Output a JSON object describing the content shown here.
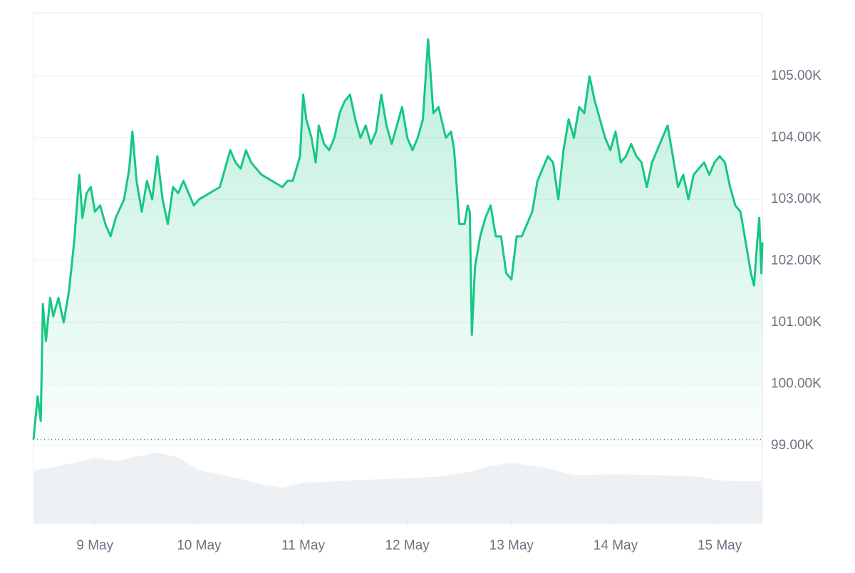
{
  "chart_data": {
    "type": "line",
    "x": [
      8.41,
      8.45,
      8.48,
      8.5,
      8.53,
      8.57,
      8.6,
      8.65,
      8.7,
      8.75,
      8.8,
      8.85,
      8.88,
      8.92,
      8.96,
      9.0,
      9.05,
      9.1,
      9.15,
      9.2,
      9.28,
      9.33,
      9.36,
      9.4,
      9.45,
      9.5,
      9.55,
      9.6,
      9.65,
      9.7,
      9.75,
      9.8,
      9.85,
      9.9,
      9.95,
      10.0,
      10.1,
      10.2,
      10.25,
      10.3,
      10.35,
      10.4,
      10.45,
      10.5,
      10.6,
      10.7,
      10.8,
      10.85,
      10.9,
      10.97,
      11.0,
      11.03,
      11.08,
      11.12,
      11.15,
      11.2,
      11.25,
      11.3,
      11.35,
      11.4,
      11.45,
      11.5,
      11.55,
      11.6,
      11.65,
      11.7,
      11.75,
      11.8,
      11.85,
      11.9,
      11.95,
      12.0,
      12.05,
      12.1,
      12.15,
      12.2,
      12.25,
      12.3,
      12.37,
      12.42,
      12.45,
      12.5,
      12.55,
      12.58,
      12.6,
      12.62,
      12.65,
      12.7,
      12.75,
      12.8,
      12.85,
      12.9,
      12.95,
      13.0,
      13.05,
      13.1,
      13.15,
      13.2,
      13.25,
      13.3,
      13.35,
      13.4,
      13.45,
      13.5,
      13.55,
      13.6,
      13.65,
      13.7,
      13.75,
      13.8,
      13.85,
      13.9,
      13.95,
      14.0,
      14.05,
      14.1,
      14.15,
      14.2,
      14.25,
      14.3,
      14.35,
      14.4,
      14.45,
      14.5,
      14.55,
      14.6,
      14.65,
      14.7,
      14.75,
      14.8,
      14.85,
      14.9,
      14.95,
      15.0,
      15.05,
      15.1,
      15.15,
      15.2,
      15.25,
      15.3,
      15.33,
      15.36,
      15.38,
      15.4,
      15.41
    ],
    "series": [
      {
        "color": "#16c784",
        "values": [
          99100,
          99800,
          99400,
          101300,
          100700,
          101400,
          101100,
          101400,
          101000,
          101500,
          102300,
          103400,
          102700,
          103100,
          103200,
          102800,
          102900,
          102600,
          102400,
          102700,
          103000,
          103500,
          104100,
          103300,
          102800,
          103300,
          103000,
          103700,
          103000,
          102600,
          103200,
          103100,
          103300,
          103100,
          102900,
          103000,
          103100,
          103200,
          103500,
          103800,
          103600,
          103500,
          103800,
          103600,
          103400,
          103300,
          103200,
          103300,
          103300,
          103700,
          104700,
          104300,
          104000,
          103600,
          104200,
          103900,
          103800,
          104000,
          104400,
          104600,
          104700,
          104300,
          104000,
          104200,
          103900,
          104100,
          104700,
          104200,
          103900,
          104200,
          104500,
          104000,
          103800,
          104000,
          104300,
          105600,
          104400,
          104500,
          104000,
          104100,
          103800,
          102600,
          102600,
          102900,
          102800,
          100800,
          101900,
          102400,
          102700,
          102900,
          102400,
          102400,
          101800,
          101700,
          102400,
          102400,
          102600,
          102800,
          103300,
          103500,
          103700,
          103600,
          103000,
          103800,
          104300,
          104000,
          104500,
          104400,
          105000,
          104600,
          104300,
          104000,
          103800,
          104100,
          103600,
          103700,
          103900,
          103700,
          103600,
          103200,
          103600,
          103800,
          104000,
          104200,
          103700,
          103200,
          103400,
          103000,
          103400,
          103500,
          103600,
          103400,
          103600,
          103700,
          103600,
          103200,
          102900,
          102800,
          102300,
          101800,
          101600,
          102300,
          102700,
          101800,
          102300
        ]
      }
    ],
    "reference_value": 99100,
    "volume": {
      "color": "#eef1f4",
      "y2lim": [
        0,
        100
      ],
      "x": [
        8.41,
        8.6,
        8.8,
        9.0,
        9.2,
        9.4,
        9.6,
        9.8,
        10.0,
        10.2,
        10.4,
        10.6,
        10.8,
        11.0,
        11.3,
        11.6,
        12.0,
        12.3,
        12.6,
        12.8,
        13.0,
        13.3,
        13.6,
        14.0,
        14.4,
        14.8,
        15.0,
        15.2,
        15.41
      ],
      "values": [
        68,
        72,
        78,
        84,
        80,
        86,
        91,
        85,
        68,
        63,
        57,
        50,
        46,
        52,
        54,
        56,
        58,
        60,
        66,
        74,
        78,
        72,
        62,
        63,
        62,
        60,
        55,
        54,
        54
      ]
    },
    "xlim": [
      8.41,
      15.41
    ],
    "xticks": [
      {
        "value": 9,
        "label": "9 May"
      },
      {
        "value": 10,
        "label": "10 May"
      },
      {
        "value": 11,
        "label": "11 May"
      },
      {
        "value": 12,
        "label": "12 May"
      },
      {
        "value": 13,
        "label": "13 May"
      },
      {
        "value": 14,
        "label": "14 May"
      },
      {
        "value": 15,
        "label": "15 May"
      }
    ],
    "ylim": [
      99000,
      106030
    ],
    "yticks": [
      {
        "value": 99000,
        "label": "99.00K"
      },
      {
        "value": 100000,
        "label": "100.00K"
      },
      {
        "value": 101000,
        "label": "101.00K"
      },
      {
        "value": 102000,
        "label": "102.00K"
      },
      {
        "value": 103000,
        "label": "103.00K"
      },
      {
        "value": 104000,
        "label": "104.00K"
      },
      {
        "value": 105000,
        "label": "105.00K"
      }
    ],
    "grid": true
  }
}
